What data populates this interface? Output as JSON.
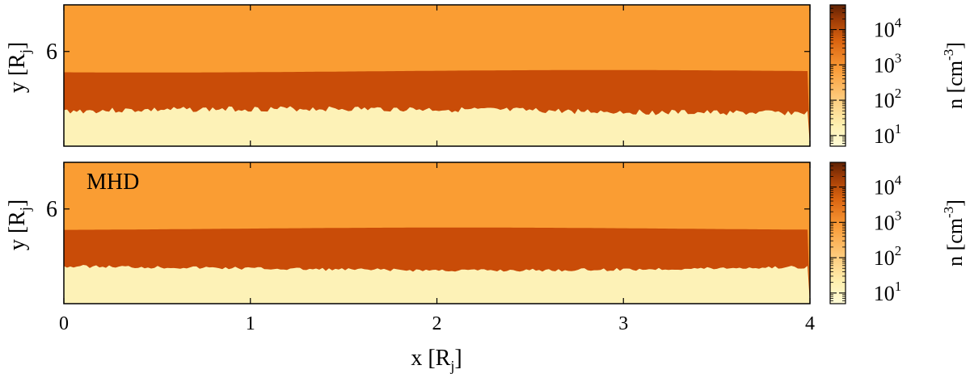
{
  "chart_data": [
    {
      "type": "heatmap",
      "panel_label": "",
      "xlabel": "x [R",
      "xlabel_sub": "j",
      "xlabel_close": "]",
      "ylabel": "y [R",
      "ylabel_sub": "j",
      "ylabel_close": "]",
      "xlim": [
        0,
        4
      ],
      "x_ticks": [
        "0",
        "1",
        "2",
        "3",
        "4"
      ],
      "y_tick": "6",
      "y_tick_fraction": 0.67,
      "regions": [
        {
          "layer": "ambient",
          "density_cm3": 1000,
          "color": "#fa9d33"
        },
        {
          "layer": "shear-layer",
          "density_cm3": 5000,
          "color": "#c94c08"
        },
        {
          "layer": "jet",
          "density_cm3": 10,
          "color": "#fdf2b7"
        }
      ],
      "upper_interface_fraction": 0.53,
      "lower_interface_fraction": 0.25,
      "colorbar": {
        "label": "n [cm",
        "label_sup": "-3",
        "label_close": "]",
        "scale": "log",
        "range": [
          5,
          50000
        ],
        "ticks": [
          {
            "base": "10",
            "exp": "1",
            "value": 10
          },
          {
            "base": "10",
            "exp": "2",
            "value": 100
          },
          {
            "base": "10",
            "exp": "3",
            "value": 1000
          },
          {
            "base": "10",
            "exp": "4",
            "value": 10000
          }
        ]
      }
    },
    {
      "type": "heatmap",
      "panel_label": "MHD",
      "xlabel": "x [R",
      "xlabel_sub": "j",
      "xlabel_close": "]",
      "ylabel": "y [R",
      "ylabel_sub": "j",
      "ylabel_close": "]",
      "xlim": [
        0,
        4
      ],
      "x_ticks": [
        "0",
        "1",
        "2",
        "3",
        "4"
      ],
      "y_tick": "6",
      "y_tick_fraction": 0.67,
      "regions": [
        {
          "layer": "ambient",
          "density_cm3": 1000,
          "color": "#fa9d33"
        },
        {
          "layer": "shear-layer",
          "density_cm3": 5000,
          "color": "#c94c08"
        },
        {
          "layer": "jet",
          "density_cm3": 10,
          "color": "#fdf2b7"
        }
      ],
      "upper_interface_fraction": 0.53,
      "lower_interface_fraction": 0.25,
      "colorbar": {
        "label": "n [cm",
        "label_sup": "-3",
        "label_close": "]",
        "scale": "log",
        "range": [
          5,
          50000
        ],
        "ticks": [
          {
            "base": "10",
            "exp": "1",
            "value": 10
          },
          {
            "base": "10",
            "exp": "2",
            "value": 100
          },
          {
            "base": "10",
            "exp": "3",
            "value": 1000
          },
          {
            "base": "10",
            "exp": "4",
            "value": 10000
          }
        ]
      }
    }
  ]
}
